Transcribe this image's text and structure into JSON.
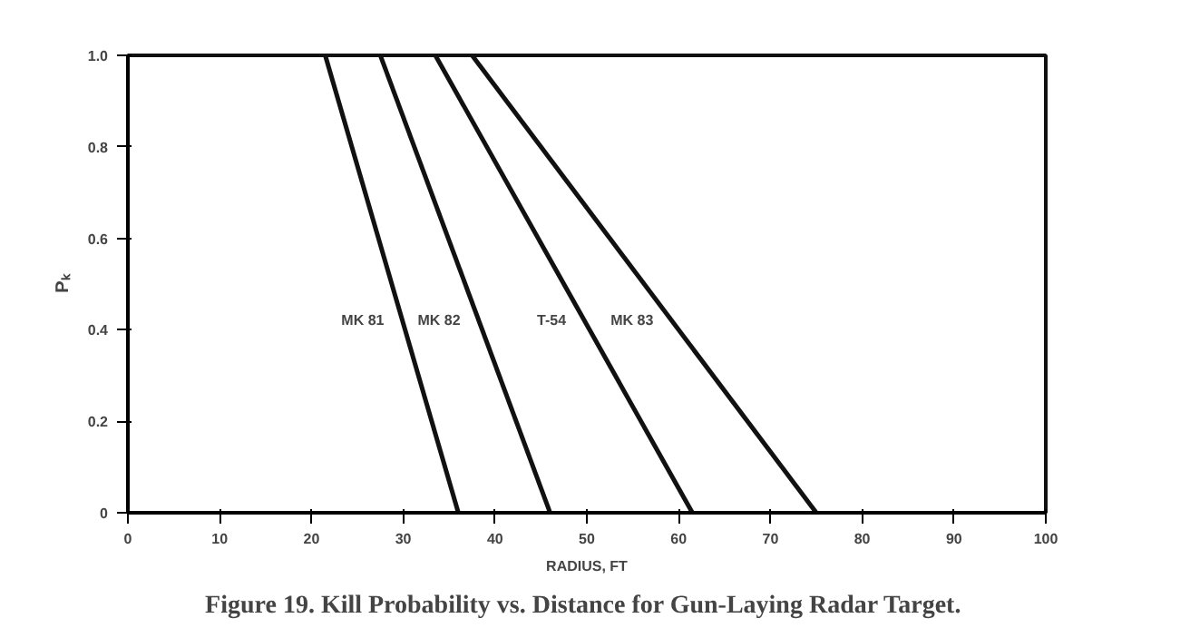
{
  "chart_data": {
    "type": "line",
    "title": "Figure 19.  Kill Probability vs. Distance for Gun-Laying Radar Target.",
    "xlabel": "RADIUS, FT",
    "ylabel": "Pₖ",
    "xlim": [
      0,
      100
    ],
    "xticks": [
      0,
      10,
      20,
      30,
      40,
      50,
      60,
      70,
      80,
      90,
      100
    ],
    "ylim": [
      0,
      1.0
    ],
    "yticks": [
      0,
      0.2,
      0.4,
      0.6,
      0.8,
      {
        "value": 1.0,
        "label": "1.0"
      }
    ],
    "grid": false,
    "marker": "none",
    "line_style": "solid",
    "series": [
      {
        "name": "MK 81",
        "color": "#111111",
        "x": [
          21.5,
          36
        ],
        "values": [
          1.0,
          0
        ]
      },
      {
        "name": "MK 82",
        "color": "#111111",
        "x": [
          27.5,
          46
        ],
        "values": [
          1.0,
          0
        ]
      },
      {
        "name": "T-54",
        "color": "#111111",
        "x": [
          33.5,
          61.5
        ],
        "values": [
          1.0,
          0
        ]
      },
      {
        "name": "MK 83",
        "color": "#111111",
        "x": [
          37.5,
          75
        ],
        "values": [
          1.0,
          0
        ]
      }
    ]
  }
}
